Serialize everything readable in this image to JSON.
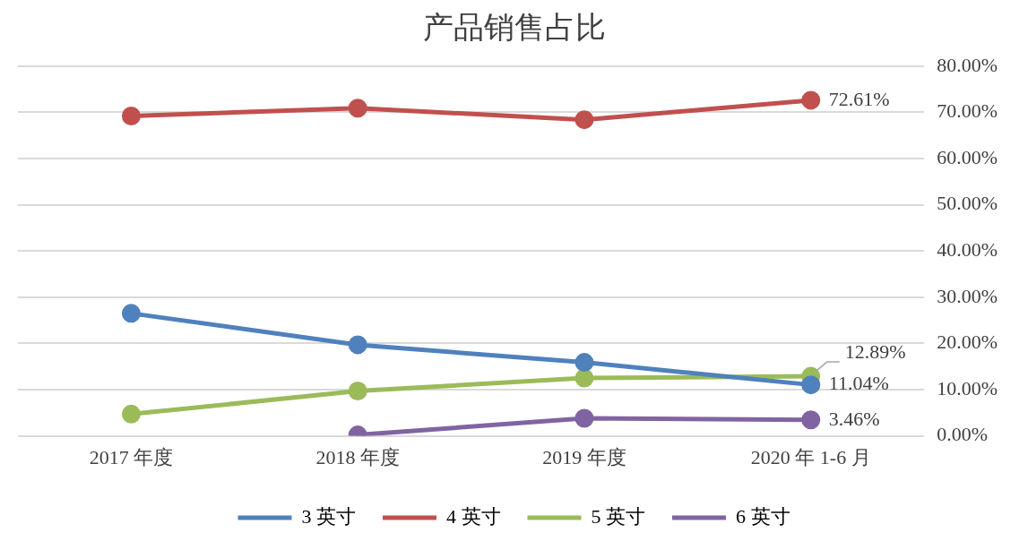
{
  "chart_data": {
    "type": "line",
    "title": "产品销售占比",
    "categories": [
      "2017 年度",
      "2018 年度",
      "2019 年度",
      "2020 年 1-6 月"
    ],
    "series": [
      {
        "name": "3 英寸",
        "color": "#4f81bd",
        "values": [
          26.5,
          19.7,
          15.9,
          11.04
        ],
        "value_labels": [
          null,
          null,
          null,
          "11.04%"
        ]
      },
      {
        "name": "4 英寸",
        "color": "#c0504d",
        "values": [
          69.2,
          70.9,
          68.4,
          72.61
        ],
        "value_labels": [
          null,
          null,
          null,
          "72.61%"
        ]
      },
      {
        "name": "5 英寸",
        "color": "#9bbb59",
        "values": [
          4.7,
          9.7,
          12.5,
          12.89
        ],
        "value_labels": [
          null,
          null,
          null,
          "12.89%"
        ]
      },
      {
        "name": "6 英寸",
        "color": "#8064a2",
        "values": [
          null,
          0.2,
          3.8,
          3.46
        ],
        "value_labels": [
          null,
          null,
          null,
          "3.46%"
        ]
      }
    ],
    "ylim": [
      0,
      80
    ],
    "yticks": [
      {
        "value": 0,
        "label": "0.00%"
      },
      {
        "value": 10,
        "label": "10.00%"
      },
      {
        "value": 20,
        "label": "20.00%"
      },
      {
        "value": 30,
        "label": "30.00%"
      },
      {
        "value": 40,
        "label": "40.00%"
      },
      {
        "value": 50,
        "label": "50.00%"
      },
      {
        "value": 60,
        "label": "60.00%"
      },
      {
        "value": 70,
        "label": "70.00%"
      },
      {
        "value": 80,
        "label": "80.00%"
      }
    ],
    "grid": "y",
    "legend": "bottom",
    "marker": "circle",
    "line_style": "solid"
  }
}
